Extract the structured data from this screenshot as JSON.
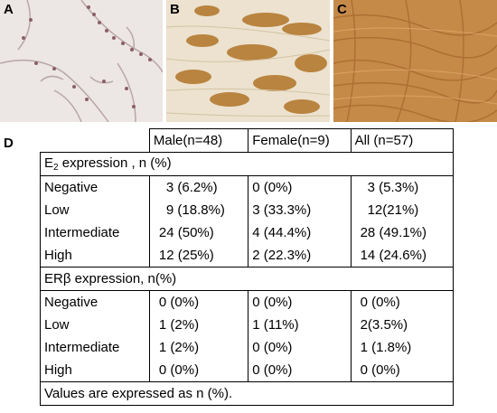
{
  "panels": [
    {
      "label": "A"
    },
    {
      "label": "B"
    },
    {
      "label": "C"
    }
  ],
  "table_label": "D",
  "table": {
    "columns": [
      "",
      "Male(n=48)",
      "Female(n=9)",
      "All (n=57)"
    ],
    "section1": {
      "title_main": "E",
      "title_sub": "2",
      "title_rest": " expression , n (%)",
      "rows": [
        {
          "label": "Negative",
          "male": "3 (6.2%)",
          "female": "0 (0%)",
          "all": "3 (5.3%)"
        },
        {
          "label": "Low",
          "male": "9 (18.8%)",
          "female": "3 (33.3%)",
          "all": "12(21%)"
        },
        {
          "label": "Intermediate",
          "male": "24 (50%)",
          "female": "4 (44.4%)",
          "all": "28 (49.1%)"
        },
        {
          "label": "High",
          "male": "12 (25%)",
          "female": "2 (22.3%)",
          "all": "14 (24.6%)"
        }
      ]
    },
    "section2": {
      "title": "ERβ expression, n(%)",
      "rows": [
        {
          "label": "Negative",
          "male": "0 (0%)",
          "female": "0 (0%)",
          "all": "0 (0%)"
        },
        {
          "label": "Low",
          "male": "1 (2%)",
          "female": "1 (11%)",
          "all": "2(3.5%)"
        },
        {
          "label": "Intermediate",
          "male": "1 (2%)",
          "female": "0 (0%)",
          "all": "1 (1.8%)"
        },
        {
          "label": "High",
          "male": "0 (0%)",
          "female": "0 (0%)",
          "all": "0 (0%)"
        }
      ]
    },
    "footnote": "Values are expressed as n (%)."
  }
}
